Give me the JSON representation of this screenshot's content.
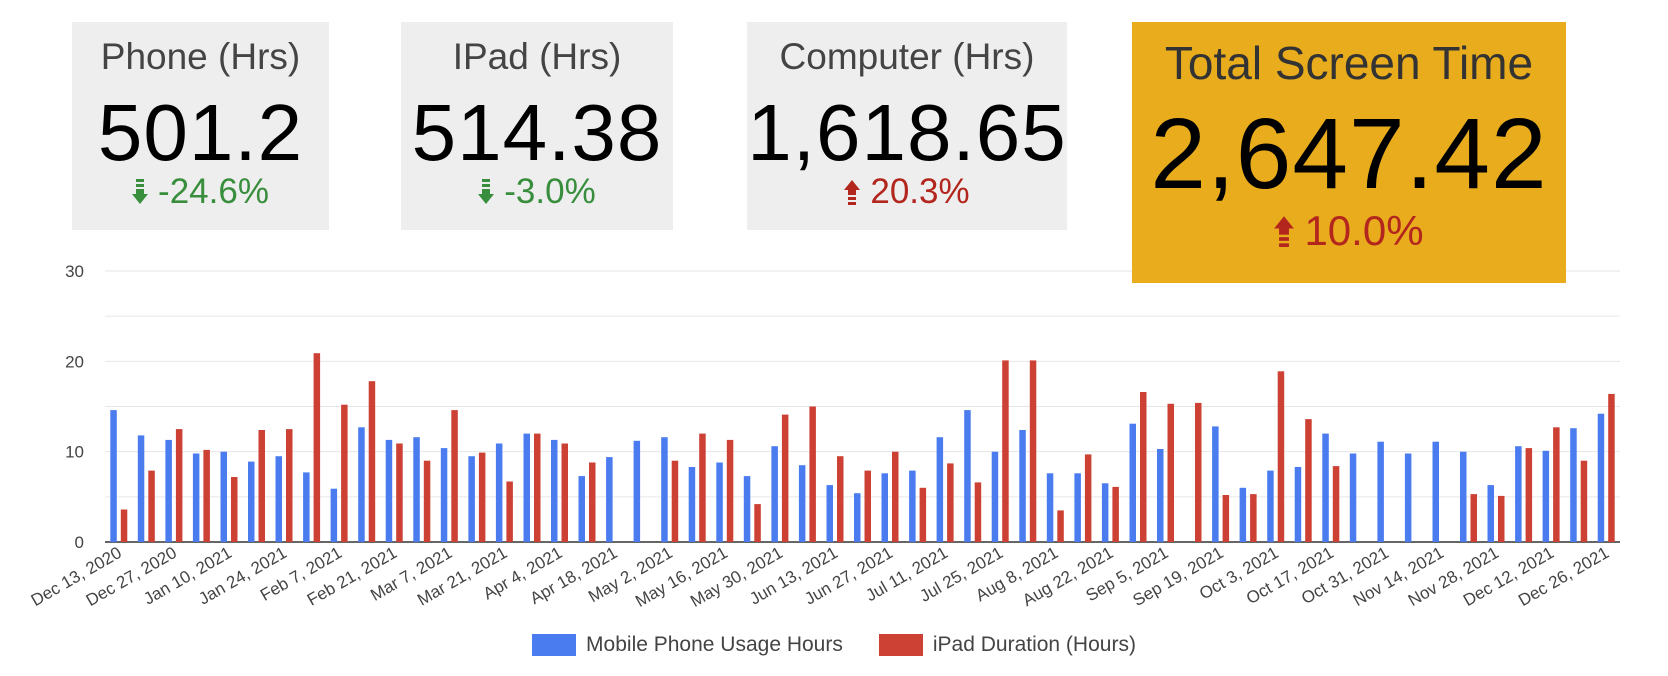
{
  "scorecards": [
    {
      "id": "phone",
      "label": "Phone (Hrs)",
      "value": "501.2",
      "delta": "-24.6%",
      "direction": "down",
      "color": "#388e3c"
    },
    {
      "id": "ipad",
      "label": "IPad (Hrs)",
      "value": "514.38",
      "delta": "-3.0%",
      "direction": "down",
      "color": "#388e3c"
    },
    {
      "id": "computer",
      "label": "Computer (Hrs)",
      "value": "1,618.65",
      "delta": "20.3%",
      "direction": "up",
      "color": "#b3261e"
    },
    {
      "id": "total",
      "label": "Total Screen Time",
      "value": "2,647.42",
      "delta": "10.0%",
      "direction": "up",
      "color": "#b3261e"
    }
  ],
  "colors": {
    "phone": "#4a7cf0",
    "ipad": "#cc4134",
    "card_bg": "#eeeeee",
    "total_bg": "#e8ac1c",
    "grid": "#e6e6e6",
    "axis": "#444444"
  },
  "chart_data": {
    "type": "bar",
    "ylim": [
      0,
      30
    ],
    "yticks": [
      0,
      10,
      20,
      30
    ],
    "grid": true,
    "legend": "bottom",
    "series": [
      {
        "name": "Mobile Phone Usage Hours",
        "color": "#4a7cf0",
        "values": [
          14.6,
          11.8,
          11.3,
          9.8,
          10.0,
          8.9,
          9.5,
          7.7,
          5.9,
          12.7,
          11.3,
          11.6,
          10.4,
          9.5,
          10.9,
          12.0,
          11.3,
          7.3,
          9.4,
          11.2,
          11.6,
          8.3,
          8.8,
          7.3,
          10.6,
          8.5,
          6.3,
          5.4,
          7.6,
          7.9,
          11.6,
          14.6,
          10.0,
          12.4,
          7.6,
          7.6,
          6.5,
          13.1,
          10.3,
          null,
          12.8,
          6.0,
          7.9,
          8.3,
          12.0,
          9.8,
          11.1,
          9.8,
          11.1,
          10.0,
          6.3,
          10.6,
          10.1,
          12.6,
          14.2
        ]
      },
      {
        "name": "iPad Duration (Hours)",
        "color": "#cc4134",
        "values": [
          3.6,
          7.9,
          12.5,
          10.2,
          7.2,
          12.4,
          12.5,
          20.9,
          15.2,
          17.8,
          10.9,
          9.0,
          14.6,
          9.9,
          6.7,
          12.0,
          10.9,
          8.8,
          null,
          null,
          9.0,
          12.0,
          11.3,
          4.2,
          14.1,
          15.0,
          9.5,
          7.9,
          10.0,
          6.0,
          8.7,
          6.6,
          20.1,
          20.1,
          3.5,
          9.7,
          6.1,
          16.6,
          15.3,
          15.4,
          5.2,
          5.3,
          18.9,
          13.6,
          8.4,
          null,
          null,
          null,
          null,
          5.3,
          5.1,
          10.4,
          12.7,
          9.0,
          16.4
        ]
      }
    ],
    "x_tick_labels": [
      "Dec 13, 2020",
      "Dec 27, 2020",
      "Jan 10, 2021",
      "Jan 24, 2021",
      "Feb 7, 2021",
      "Feb 21, 2021",
      "Mar 7, 2021",
      "Mar 21, 2021",
      "Apr 4, 2021",
      "Apr 18, 2021",
      "May 2, 2021",
      "May 16, 2021",
      "May 30, 2021",
      "Jun 13, 2021",
      "Jun 27, 2021",
      "Jul 11, 2021",
      "Jul 25, 2021",
      "Aug 8, 2021",
      "Aug 22, 2021",
      "Sep 5, 2021",
      "Sep 19, 2021",
      "Oct 3, 2021",
      "Oct 17, 2021",
      "Oct 31, 2021",
      "Nov 14, 2021",
      "Nov 28, 2021",
      "Dec 12, 2021",
      "Dec 26, 2021"
    ]
  }
}
